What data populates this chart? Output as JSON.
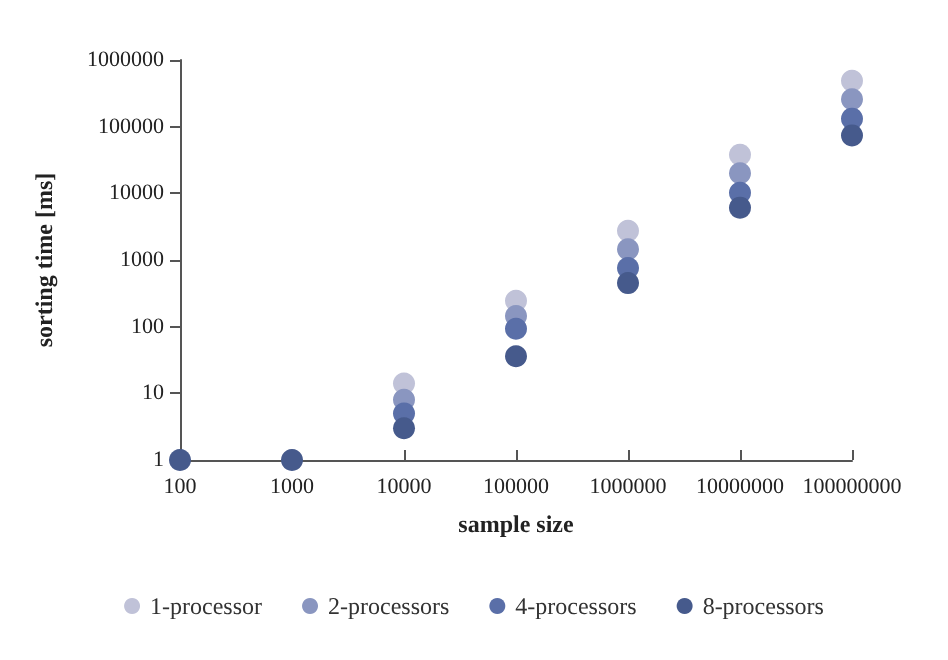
{
  "chart_data": {
    "type": "scatter",
    "xlabel": "sample size",
    "ylabel": "sorting time [ms]",
    "categories": [
      "100",
      "1000",
      "10000",
      "100000",
      "1000000",
      "10000000",
      "100000000"
    ],
    "log": "y",
    "ylim": [
      1,
      1000000
    ],
    "yticks": [
      1,
      10,
      100,
      1000,
      10000,
      100000,
      1000000
    ],
    "grid": false,
    "legend": "bottom",
    "marker": "circle",
    "series": [
      {
        "name": "1-processor",
        "color": "#c0c2d8",
        "values": [
          null,
          null,
          14,
          245,
          2750,
          38000,
          490000
        ]
      },
      {
        "name": "2-processors",
        "color": "#8a96c0",
        "values": [
          null,
          null,
          8,
          145,
          1450,
          20000,
          257000
        ]
      },
      {
        "name": "4-processors",
        "color": "#5a6fa8",
        "values": [
          null,
          null,
          5,
          93,
          760,
          10200,
          132000
        ]
      },
      {
        "name": "8-processors",
        "color": "#465a8c",
        "values": [
          1,
          1,
          3,
          36,
          450,
          6100,
          74000
        ]
      }
    ]
  }
}
